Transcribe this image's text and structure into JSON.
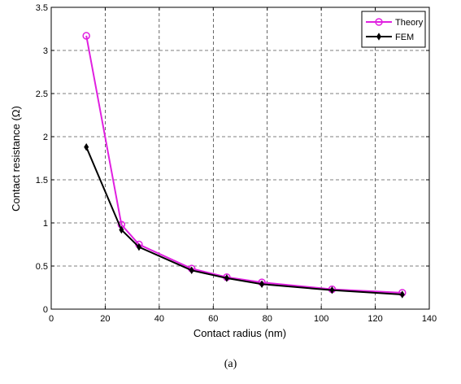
{
  "chart_data": {
    "type": "line",
    "xlabel": "Contact radius (nm)",
    "ylabel": "Contact resistance (Ω)",
    "xlim": [
      0,
      140
    ],
    "ylim": [
      0,
      3.5
    ],
    "x_ticks": [
      "0",
      "20",
      "40",
      "60",
      "80",
      "100",
      "120",
      "140"
    ],
    "y_ticks": [
      "0",
      "0.5",
      "1",
      "1.5",
      "2",
      "2.5",
      "3",
      "3.5"
    ],
    "grid": "dashed",
    "legend_position": "top-right",
    "x": [
      13,
      26,
      32.5,
      52,
      65,
      78,
      104,
      130
    ],
    "series": [
      {
        "name": "Theory",
        "color": "#e020e0",
        "marker": "circle",
        "values": [
          3.17,
          0.98,
          0.75,
          0.47,
          0.37,
          0.31,
          0.23,
          0.19
        ]
      },
      {
        "name": "FEM",
        "color": "#000000",
        "marker": "diamond",
        "values": [
          1.88,
          0.92,
          0.72,
          0.45,
          0.36,
          0.29,
          0.22,
          0.17
        ]
      }
    ]
  },
  "caption": "(a)"
}
